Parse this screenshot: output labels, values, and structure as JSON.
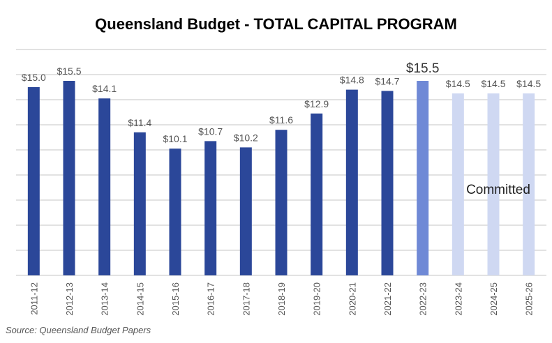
{
  "chart_data": {
    "type": "bar",
    "title": "Queensland Budget - TOTAL CAPITAL PROGRAM",
    "categories": [
      "2011-12",
      "2012-13",
      "2013-14",
      "2014-15",
      "2015-16",
      "2016-17",
      "2017-18",
      "2018-19",
      "2019-20",
      "2020-21",
      "2021-22",
      "2022-23",
      "2023-24",
      "2024-25",
      "2025-26"
    ],
    "values": [
      15.0,
      15.5,
      14.1,
      11.4,
      10.1,
      10.7,
      10.2,
      11.6,
      12.9,
      14.8,
      14.7,
      15.5,
      14.5,
      14.5,
      14.5
    ],
    "labels": [
      "$15.0",
      "$15.5",
      "$14.1",
      "$11.4",
      "$10.1",
      "$10.7",
      "$10.2",
      "$11.6",
      "$12.9",
      "$14.8",
      "$14.7",
      "$15.5",
      "$14.5",
      "$14.5",
      "$14.5"
    ],
    "bar_kinds": [
      "actual",
      "actual",
      "actual",
      "actual",
      "actual",
      "actual",
      "actual",
      "actual",
      "actual",
      "actual",
      "actual",
      "current",
      "committed",
      "committed",
      "committed"
    ],
    "colors": {
      "actual": "#2b4799",
      "current": "#6f89d6",
      "committed": "#cfd8f2",
      "grid": "#d9d9d9"
    },
    "annotation": "Committed",
    "ylim": [
      0,
      18
    ],
    "grid": true,
    "source": "Source: Queensland Budget Papers"
  }
}
